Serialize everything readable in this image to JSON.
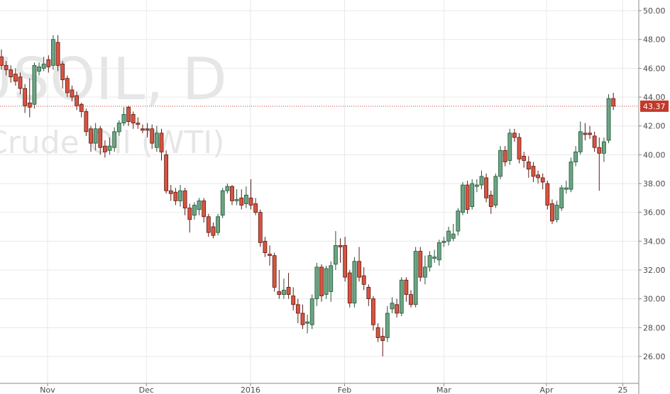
{
  "chart_data": {
    "type": "candlestick",
    "watermark": [
      "USOIL, D",
      "Crude Oil (WTI)"
    ],
    "open": [
      46.8,
      46.2,
      45.9,
      45.6,
      45.4,
      44.6,
      43.6,
      43.5,
      45.8,
      46.0,
      46.6,
      46.2,
      47.8,
      46.3,
      45.3,
      44.5,
      44.1,
      43.5,
      43.0,
      41.8,
      40.8,
      41.8,
      40.6,
      40.3,
      40.5,
      41.6,
      42.2,
      43.3,
      42.8,
      42.2,
      41.8,
      41.8,
      41.8,
      40.5,
      41.5,
      40.0,
      37.5,
      37.4,
      36.8,
      37.5,
      36.3,
      35.8,
      36.2,
      36.8,
      35.7,
      35.0,
      34.6,
      35.8,
      37.5,
      37.8,
      36.8,
      37.0,
      36.6,
      37.0,
      36.6,
      36.0,
      34.0,
      33.1,
      33.0,
      30.5,
      30.3,
      30.8,
      30.2,
      29.6,
      29.0,
      28.3,
      28.2,
      30.0,
      32.2,
      30.3,
      30.5,
      32.4,
      33.7,
      33.7,
      31.8,
      29.7,
      32.6,
      31.6,
      30.8,
      30.0,
      28.0,
      27.4,
      27.3,
      29.3,
      29.6,
      29.0,
      31.3,
      30.3,
      29.6,
      33.3,
      31.5,
      32.2,
      32.8,
      32.7,
      33.9,
      34.0,
      34.2,
      34.7,
      36.0,
      37.9,
      36.4,
      37.8,
      37.9,
      38.4,
      37.2,
      36.5,
      38.5,
      40.3,
      39.6,
      41.5,
      41.2,
      39.9,
      39.5,
      39.2,
      38.6,
      38.4,
      38.0,
      36.6,
      35.5,
      36.3,
      37.6,
      37.6,
      39.5,
      40.2,
      41.5,
      41.5,
      41.3,
      40.5,
      40.1,
      41.0,
      43.9
    ],
    "high": [
      47.3,
      46.5,
      46.2,
      46.0,
      45.7,
      44.9,
      45.3,
      46.4,
      46.4,
      46.8,
      46.9,
      48.3,
      48.3,
      46.5,
      45.5,
      44.8,
      44.4,
      43.6,
      43.2,
      42.0,
      42.2,
      42.0,
      41.0,
      41.2,
      41.9,
      42.4,
      43.3,
      43.4,
      43.0,
      42.6,
      42.1,
      42.2,
      42.1,
      42.0,
      41.8,
      40.3,
      37.9,
      37.7,
      37.9,
      37.7,
      36.6,
      36.7,
      37.0,
      37.0,
      35.9,
      35.3,
      35.9,
      37.7,
      38.0,
      37.9,
      37.6,
      37.6,
      37.8,
      38.3,
      37.0,
      36.2,
      34.3,
      33.7,
      33.2,
      32.0,
      31.4,
      31.8,
      30.8,
      30.0,
      29.6,
      28.9,
      30.3,
      32.5,
      32.4,
      32.3,
      32.6,
      34.7,
      34.2,
      34.3,
      32.0,
      32.9,
      33.6,
      32.2,
      31.0,
      30.2,
      28.3,
      28.0,
      29.5,
      30.1,
      30.0,
      31.5,
      31.5,
      30.6,
      33.6,
      33.6,
      33.0,
      33.3,
      33.4,
      34.1,
      34.3,
      35.0,
      35.2,
      36.3,
      38.1,
      38.2,
      38.3,
      38.3,
      38.9,
      38.7,
      37.5,
      38.7,
      40.6,
      40.6,
      41.8,
      41.8,
      41.5,
      40.2,
      39.9,
      39.5,
      38.9,
      38.7,
      38.2,
      36.9,
      36.8,
      37.9,
      38.2,
      39.8,
      40.6,
      42.3,
      42.2,
      42.0,
      41.6,
      41.2,
      41.2,
      44.2,
      44.3
    ],
    "low": [
      45.9,
      45.5,
      45.0,
      44.8,
      44.2,
      42.9,
      42.6,
      43.2,
      45.5,
      45.8,
      45.7,
      45.9,
      45.8,
      44.6,
      44.0,
      43.7,
      43.1,
      42.6,
      41.3,
      40.2,
      40.3,
      40.0,
      39.8,
      40.0,
      40.2,
      41.3,
      42.0,
      42.0,
      41.8,
      41.8,
      41.5,
      41.2,
      40.4,
      40.2,
      39.6,
      37.3,
      36.8,
      36.5,
      36.4,
      35.8,
      34.6,
      35.5,
      35.8,
      35.3,
      34.3,
      34.2,
      34.4,
      35.6,
      37.3,
      36.5,
      36.5,
      36.2,
      36.3,
      36.2,
      35.8,
      33.6,
      32.9,
      32.3,
      30.5,
      30.0,
      30.0,
      30.0,
      29.2,
      28.3,
      27.9,
      27.6,
      27.9,
      29.5,
      29.8,
      30.0,
      29.8,
      32.0,
      32.5,
      31.2,
      29.4,
      29.4,
      31.2,
      30.6,
      29.5,
      27.8,
      27.0,
      26.0,
      27.0,
      29.0,
      28.7,
      28.8,
      29.8,
      29.4,
      29.4,
      31.2,
      31.0,
      31.9,
      32.5,
      32.3,
      33.6,
      33.7,
      34.0,
      34.4,
      35.8,
      35.9,
      36.2,
      37.4,
      37.6,
      36.7,
      35.9,
      36.3,
      38.3,
      39.2,
      39.3,
      40.9,
      39.4,
      39.1,
      38.4,
      38.1,
      38.0,
      37.6,
      36.2,
      35.2,
      35.3,
      36.1,
      37.3,
      37.4,
      39.2,
      40.0,
      41.0,
      41.1,
      40.2,
      37.5,
      39.5,
      40.8,
      43.1
    ],
    "close": [
      46.2,
      45.9,
      45.4,
      45.1,
      44.6,
      43.4,
      43.3,
      46.2,
      46.1,
      46.3,
      46.1,
      48.0,
      46.2,
      45.2,
      44.3,
      44.0,
      43.4,
      43.0,
      41.6,
      40.8,
      41.8,
      40.5,
      40.2,
      40.6,
      41.6,
      42.2,
      42.8,
      42.3,
      42.2,
      42.1,
      41.7,
      41.7,
      40.8,
      41.5,
      40.2,
      37.5,
      37.3,
      36.8,
      37.5,
      36.3,
      35.5,
      36.5,
      36.8,
      35.7,
      34.6,
      34.4,
      35.7,
      37.5,
      37.8,
      36.8,
      36.9,
      36.5,
      37.2,
      36.5,
      36.0,
      33.9,
      33.2,
      33.0,
      30.8,
      30.3,
      30.6,
      30.3,
      29.6,
      29.0,
      28.2,
      28.4,
      30.0,
      32.2,
      30.2,
      32.1,
      32.3,
      33.7,
      33.6,
      31.5,
      29.7,
      32.6,
      31.5,
      31.0,
      30.0,
      28.2,
      27.3,
      27.1,
      29.0,
      29.7,
      29.0,
      31.3,
      30.3,
      29.6,
      33.3,
      31.5,
      32.2,
      33.0,
      32.9,
      33.9,
      34.0,
      34.7,
      34.5,
      36.1,
      37.9,
      36.2,
      38.0,
      37.9,
      38.5,
      37.0,
      36.4,
      38.5,
      40.3,
      39.5,
      41.5,
      41.2,
      39.7,
      39.6,
      39.0,
      38.5,
      38.4,
      38.1,
      36.5,
      35.4,
      36.5,
      37.7,
      37.7,
      39.5,
      40.2,
      41.6,
      41.4,
      41.4,
      40.5,
      40.1,
      40.9,
      43.9,
      43.37
    ],
    "up_color": "#6ba583",
    "up_border": "#225437",
    "down_color": "#d75442",
    "down_border": "#5b1a13",
    "ylim": [
      24.13,
      50.74
    ],
    "yticks": [
      {
        "value": 26,
        "label": "26.00"
      },
      {
        "value": 28,
        "label": "28.00"
      },
      {
        "value": 30,
        "label": "30.00"
      },
      {
        "value": 32,
        "label": "32.00"
      },
      {
        "value": 34,
        "label": "34.00"
      },
      {
        "value": 36,
        "label": "36.00"
      },
      {
        "value": 38,
        "label": "38.00"
      },
      {
        "value": 40,
        "label": "40.00"
      },
      {
        "value": 42,
        "label": "42.00"
      },
      {
        "value": 44,
        "label": "44.00"
      },
      {
        "value": 46,
        "label": "46.00"
      },
      {
        "value": 48,
        "label": "48.00"
      },
      {
        "value": 50,
        "label": "50.00"
      }
    ],
    "xlim": [
      -0.3,
      135.4
    ],
    "xticks": [
      {
        "value": 9.8,
        "label": "Nov"
      },
      {
        "value": 30.8,
        "label": "Dec"
      },
      {
        "value": 52.9,
        "label": "2016"
      },
      {
        "value": 72.9,
        "label": "Feb"
      },
      {
        "value": 94,
        "label": "Mar"
      },
      {
        "value": 115.8,
        "label": "Apr"
      },
      {
        "value": 132,
        "label": "25"
      }
    ],
    "grid": true,
    "price_line_color": "#c0392b"
  }
}
